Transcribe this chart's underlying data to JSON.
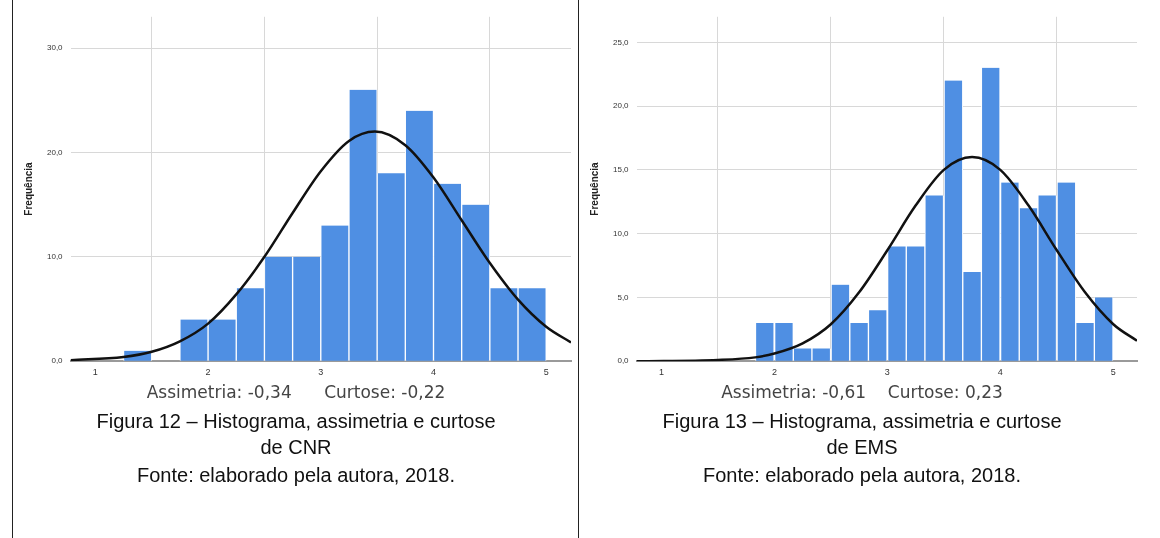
{
  "chart_data": [
    {
      "type": "histogram",
      "ylabel": "Frequência",
      "xlim": [
        0.78,
        5.22
      ],
      "ylim": [
        0,
        33
      ],
      "xticks": [
        1,
        2,
        3,
        4,
        5
      ],
      "yticks": [
        {
          "value": 0,
          "label": "0,0"
        },
        {
          "value": 10,
          "label": "10,0"
        },
        {
          "value": 20,
          "label": "20,0"
        },
        {
          "value": 30,
          "label": "30,0"
        }
      ],
      "grid": true,
      "series": [
        {
          "color": "#4f8fe3",
          "bins": [
            1.25,
            1.5,
            1.75,
            2,
            2.25,
            2.5,
            2.75,
            3,
            3.25,
            3.5,
            3.75,
            4,
            4.25,
            4.5,
            4.75,
            5
          ],
          "values": [
            1,
            0,
            4,
            4,
            7,
            10,
            10,
            13,
            26,
            18,
            24,
            17,
            15,
            7,
            7
          ]
        },
        {
          "type": "line",
          "color": "#111111",
          "marker": "none",
          "x": [
            0.78,
            1.25,
            1.5,
            1.75,
            2,
            2.25,
            2.5,
            2.75,
            3,
            3.25,
            3.48,
            3.75,
            4,
            4.25,
            4.5,
            4.75,
            5,
            5.22
          ],
          "values": [
            0.1,
            0.4,
            0.9,
            1.9,
            3.6,
            6.4,
            10,
            14.2,
            18.2,
            21.1,
            22,
            20.7,
            17.6,
            13.5,
            9.4,
            5.9,
            3.3,
            1.8
          ]
        }
      ],
      "annotations": [
        "Assimetria: -0,34      Curtose: -0,22",
        "Figura 12 – Histograma, assimetria e curtose de CNR",
        "Fonte: elaborado pela autora, 2018."
      ]
    },
    {
      "type": "histogram",
      "ylabel": "Frequência",
      "xlim": [
        0.78,
        5.21
      ],
      "ylim": [
        0,
        27
      ],
      "xticks": [
        1,
        2,
        3,
        4,
        5
      ],
      "yticks": [
        {
          "value": 0,
          "label": "0,0"
        },
        {
          "value": 5,
          "label": "5,0"
        },
        {
          "value": 10,
          "label": "10,0"
        },
        {
          "value": 15,
          "label": "15,0"
        },
        {
          "value": 20,
          "label": "20,0"
        },
        {
          "value": 25,
          "label": "25,0"
        }
      ],
      "grid": true,
      "series": [
        {
          "color": "#4f8fe3",
          "bins": [
            1.83,
            2,
            2.17,
            2.33,
            2.5,
            2.67,
            2.83,
            3,
            3.17,
            3.33,
            3.5,
            3.67,
            3.83,
            4,
            4.17,
            4.33,
            4.5,
            4.67,
            4.83,
            5
          ],
          "values": [
            3,
            3,
            1,
            1,
            6,
            3,
            4,
            9,
            9,
            13,
            22,
            7,
            23,
            14,
            12,
            13,
            14,
            3,
            5
          ]
        },
        {
          "type": "line",
          "color": "#111111",
          "marker": "none",
          "x": [
            0.78,
            1.5,
            1.83,
            2,
            2.25,
            2.5,
            2.75,
            3,
            3.25,
            3.5,
            3.75,
            4,
            4.25,
            4.5,
            4.75,
            5,
            5.21
          ],
          "values": [
            0,
            0.1,
            0.3,
            0.6,
            1.4,
            2.9,
            5.4,
            8.7,
            12.2,
            15,
            16,
            15,
            12.2,
            8.7,
            5.4,
            2.9,
            1.6
          ]
        }
      ],
      "annotations": [
        "Assimetria: -0,61    Curtose: 0,23",
        "Figura 13 – Histograma, assimetria e curtose de EMS",
        "Fonte: elaborado pela autora, 2018."
      ]
    }
  ]
}
